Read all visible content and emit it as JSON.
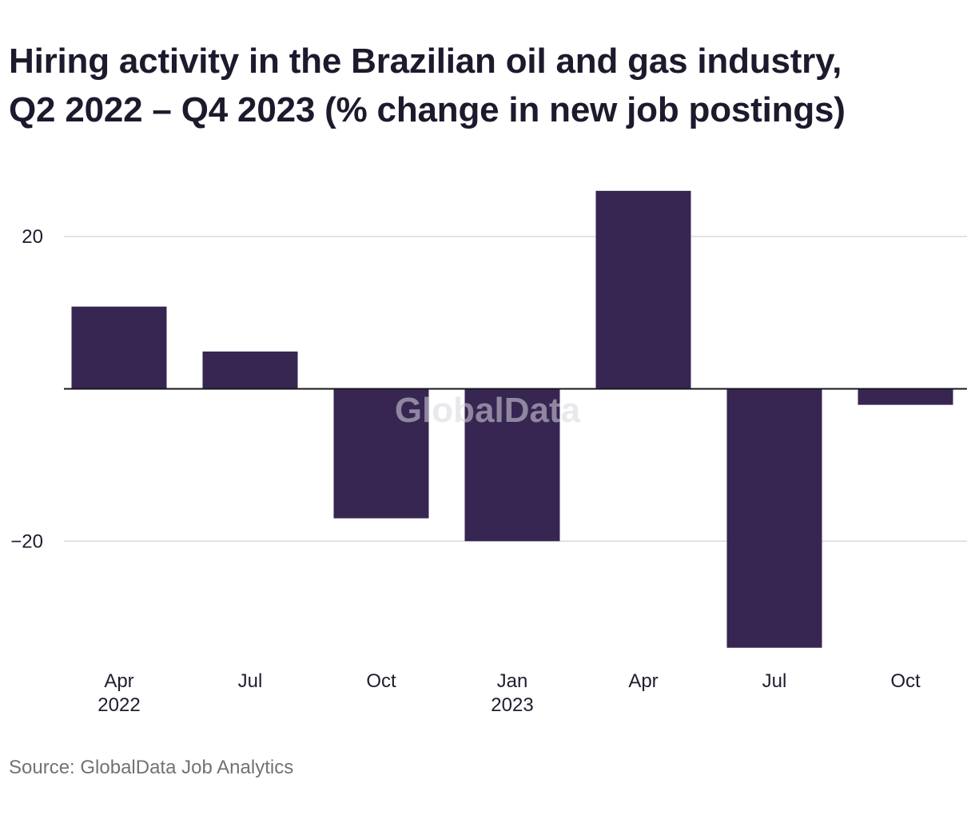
{
  "title_line1": "Hiring activity in the Brazilian oil and gas industry,",
  "title_line2": "Q2 2022 – Q4 2023 (% change in new job postings)",
  "source": "Source: GlobalData Job Analytics",
  "watermark": "GlobalData",
  "colors": {
    "bar": "#372552",
    "grid": "#d9d9d9",
    "zero_line": "#1a1a1a",
    "text": "#1f1d2e",
    "source": "#727272",
    "watermark": "#d8d6de"
  },
  "chart_data": {
    "type": "bar",
    "categories": [
      "Apr 2022",
      "Jul 2022",
      "Oct 2022",
      "Jan 2023",
      "Apr 2023",
      "Jul 2023",
      "Oct 2023"
    ],
    "x_tick_labels": [
      {
        "line1": "Apr",
        "line2": "2022"
      },
      {
        "line1": "Jul",
        "line2": ""
      },
      {
        "line1": "Oct",
        "line2": ""
      },
      {
        "line1": "Jan",
        "line2": "2023"
      },
      {
        "line1": "Apr",
        "line2": ""
      },
      {
        "line1": "Jul",
        "line2": ""
      },
      {
        "line1": "Oct",
        "line2": ""
      }
    ],
    "values": [
      10.8,
      4.9,
      -17.0,
      -20.0,
      26.0,
      -34.0,
      -2.1
    ],
    "y_ticks": [
      20,
      -20
    ],
    "y_tick_labels": [
      "20",
      "−20"
    ],
    "ylim": [
      -35.5,
      28.5
    ],
    "grid": true,
    "title": "Hiring activity in the Brazilian oil and gas industry, Q2 2022 – Q4 2023 (% change in new job postings)",
    "xlabel": "",
    "ylabel": ""
  }
}
